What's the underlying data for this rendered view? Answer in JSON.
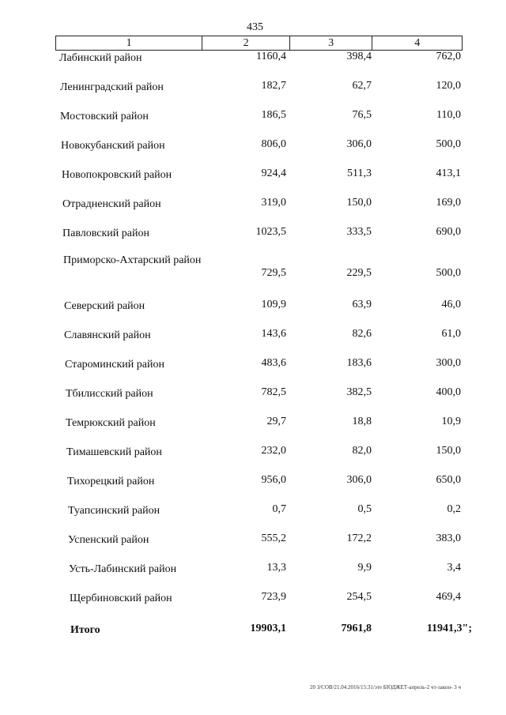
{
  "page_number": "435",
  "table": {
    "header": [
      "1",
      "2",
      "3",
      "4"
    ],
    "rows": [
      [
        "Лабинский район",
        "1160,4",
        "398,4",
        "762,0"
      ],
      [
        "Ленинградский район",
        "182,7",
        "62,7",
        "120,0"
      ],
      [
        "Мостовский район",
        "186,5",
        "76,5",
        "110,0"
      ],
      [
        "Новокубанский район",
        "806,0",
        "306,0",
        "500,0"
      ],
      [
        "Новопокровский район",
        "924,4",
        "511,3",
        "413,1"
      ],
      [
        "Отрадненский район",
        "319,0",
        "150,0",
        "169,0"
      ],
      [
        "Павловский район",
        "1023,5",
        "333,5",
        "690,0"
      ],
      [
        "Приморско-Ахтарский район",
        "729,5",
        "229,5",
        "500,0"
      ],
      [
        "Северский район",
        "109,9",
        "63,9",
        "46,0"
      ],
      [
        "Славянский район",
        "143,6",
        "82,6",
        "61,0"
      ],
      [
        "Староминский район",
        "483,6",
        "183,6",
        "300,0"
      ],
      [
        "Тбилисский район",
        "782,5",
        "382,5",
        "400,0"
      ],
      [
        "Темрюкский район",
        "29,7",
        "18,8",
        "10,9"
      ],
      [
        "Тимашевский район",
        "232,0",
        "82,0",
        "150,0"
      ],
      [
        "Тихорецкий район",
        "956,0",
        "306,0",
        "650,0"
      ],
      [
        "Туапсинский район",
        "0,7",
        "0,5",
        "0,2"
      ],
      [
        "Успенский район",
        "555,2",
        "172,2",
        "383,0"
      ],
      [
        "Усть-Лабинский район",
        "13,3",
        "9,9",
        "3,4"
      ],
      [
        "Щербиновский район",
        "723,9",
        "254,5",
        "469,4"
      ]
    ],
    "total": [
      "Итого",
      "19903,1",
      "7961,8",
      "11941,3\";"
    ]
  },
  "footer": "20 З/СОВ/21.04.2016/15:31/эте БЮДЖЕТ-апрель-2 чт-закон- 3 ч"
}
